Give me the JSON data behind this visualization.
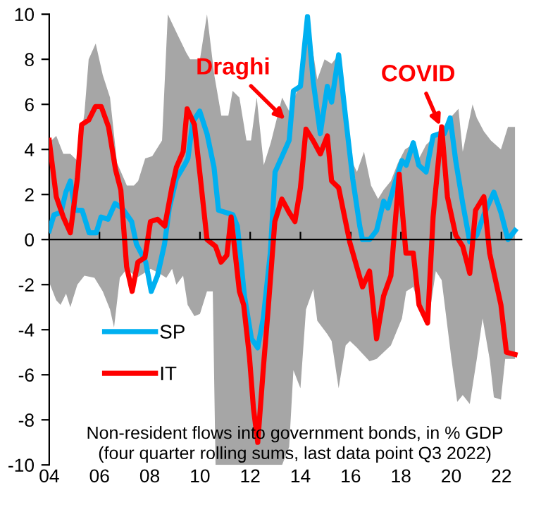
{
  "chart_data": {
    "type": "line",
    "xlim": [
      2004,
      2022.8
    ],
    "ylim": [
      -10,
      10
    ],
    "xticks": [
      {
        "value": 2004,
        "label": "04"
      },
      {
        "value": 2006,
        "label": "06"
      },
      {
        "value": 2008,
        "label": "08"
      },
      {
        "value": 2010,
        "label": "10"
      },
      {
        "value": 2012,
        "label": "12"
      },
      {
        "value": 2014,
        "label": "14"
      },
      {
        "value": 2016,
        "label": "16"
      },
      {
        "value": 2018,
        "label": "18"
      },
      {
        "value": 2020,
        "label": "20"
      },
      {
        "value": 2022,
        "label": "22"
      }
    ],
    "yticks": [
      -10,
      -8,
      -6,
      -4,
      -2,
      0,
      2,
      4,
      6,
      8,
      10
    ],
    "legend": "bottom left",
    "series": [
      {
        "type": "area",
        "color": "#a6a6a6",
        "x": [
          2004.0,
          2004.28,
          2004.56,
          2004.84,
          2005.12,
          2005.4,
          2005.57,
          2005.85,
          2006.13,
          2006.42,
          2006.7,
          2007.09,
          2007.37,
          2007.54,
          2007.82,
          2008.1,
          2008.49,
          2008.72,
          2009.06,
          2009.45,
          2009.61,
          2010.0,
          2010.28,
          2010.57,
          2010.85,
          2011.13,
          2011.3,
          2011.57,
          2011.85,
          2012.03,
          2012.26,
          2012.54,
          2012.82,
          2013.27,
          2013.55,
          2013.94,
          2014.28,
          2014.67,
          2014.96,
          2015.24,
          2015.52,
          2015.8,
          2016.08,
          2016.25,
          2016.53,
          2016.81,
          2017.09,
          2017.31,
          2017.6,
          2017.88,
          2018.16,
          2018.44,
          2018.72,
          2019.0,
          2019.28,
          2019.62,
          2019.96,
          2020.29,
          2020.46,
          2020.85,
          2021.02,
          2021.3,
          2021.58,
          2021.98,
          2022.26,
          2022.54
        ],
        "values": [
          4.3,
          4.6,
          3.8,
          3.8,
          3.5,
          5.6,
          8.0,
          8.7,
          7.3,
          6.3,
          3.4,
          2.4,
          2.4,
          2.6,
          3.6,
          3.7,
          4.4,
          10,
          9.2,
          8.3,
          8.0,
          8.0,
          10,
          7.3,
          5.5,
          5.5,
          6.6,
          6.3,
          4.4,
          4.4,
          6.3,
          3.3,
          4.3,
          6.3,
          5.7,
          6.8,
          9.9,
          7.1,
          8.0,
          7.8,
          8.2,
          5.4,
          3.4,
          3.0,
          3.9,
          2.4,
          1.8,
          2.2,
          2.6,
          3.4,
          4.0,
          4.2,
          3.6,
          4.2,
          4.5,
          4.9,
          5.4,
          5.8,
          3.9,
          6.0,
          5.4,
          4.8,
          4.4,
          4.0,
          5.0,
          5.0
        ]
      },
      {
        "type": "area",
        "color": "#a6a6a6",
        "x": [
          2004.0,
          2004.28,
          2004.45,
          2004.67,
          2004.84,
          2005.12,
          2005.4,
          2005.8,
          2006.13,
          2006.42,
          2006.58,
          2006.81,
          2007.09,
          2007.48,
          2007.76,
          2008.04,
          2008.38,
          2008.66,
          2008.89,
          2009.06,
          2009.33,
          2009.51,
          2009.78,
          2010.0,
          2010.28,
          2010.51,
          2010.62,
          2013.27,
          2013.55,
          2013.72,
          2014.0,
          2014.22,
          2014.51,
          2014.67,
          2015.07,
          2015.24,
          2015.52,
          2015.8,
          2015.97,
          2016.25,
          2016.75,
          2017.03,
          2017.6,
          2018.04,
          2018.21,
          2018.49,
          2018.88,
          2019.16,
          2019.39,
          2019.62,
          2020.01,
          2020.24,
          2020.46,
          2020.74,
          2021.02,
          2021.25,
          2021.53,
          2021.7,
          2021.98,
          2022.15,
          2022.54
        ],
        "values": [
          -1.9,
          -2.7,
          -2.9,
          -2.4,
          -3.0,
          -2.0,
          -1.6,
          -1.7,
          -2.3,
          -3.1,
          -3.9,
          -1.7,
          -1.3,
          -1.7,
          -1.5,
          -1.3,
          -1.5,
          -1.7,
          -1.3,
          -2.0,
          -1.6,
          -2.9,
          -3.4,
          -3.3,
          -2.3,
          -2.3,
          -10,
          -10,
          -9.2,
          -5.8,
          -6.6,
          -3.1,
          -2.2,
          -3.6,
          -4.2,
          -4.5,
          -6.6,
          -4.7,
          -4.5,
          -4.8,
          -5.4,
          -5.3,
          -4.7,
          -3.5,
          -2.3,
          -2.1,
          -3.5,
          -3.1,
          -1.4,
          -1.8,
          -5.3,
          -7.2,
          -6.9,
          -7.3,
          -5.3,
          -3.5,
          -5.3,
          -7.0,
          -7.1,
          -5.3,
          -5.3
        ]
      },
      {
        "name": "SP",
        "color": "#00b0f0",
        "x": [
          2004.0,
          2004.19,
          2004.47,
          2004.66,
          2004.84,
          2005.03,
          2005.31,
          2005.59,
          2005.87,
          2006.06,
          2006.34,
          2006.62,
          2006.9,
          2007.28,
          2007.47,
          2007.84,
          2008.06,
          2008.31,
          2008.59,
          2008.78,
          2009.06,
          2009.43,
          2009.52,
          2009.71,
          2009.99,
          2010.28,
          2010.56,
          2010.74,
          2011.03,
          2011.31,
          2011.49,
          2011.77,
          2012.05,
          2012.3,
          2012.52,
          2012.8,
          2012.99,
          2013.55,
          2013.72,
          2014.0,
          2014.28,
          2014.51,
          2014.79,
          2015.07,
          2015.24,
          2015.52,
          2015.8,
          2016.08,
          2016.36,
          2016.47,
          2016.75,
          2017.03,
          2017.31,
          2017.48,
          2017.76,
          2018.04,
          2018.21,
          2018.49,
          2018.71,
          2019.0,
          2019.28,
          2019.56,
          2019.73,
          2019.96,
          2020.18,
          2020.46,
          2020.74,
          2021.02,
          2021.3,
          2021.7,
          2021.98,
          2022.26,
          2022.54
        ],
        "values": [
          0.4,
          1.1,
          1.2,
          2.1,
          2.6,
          1.3,
          1.3,
          0.3,
          0.3,
          1.0,
          0.9,
          1.6,
          1.4,
          0.8,
          -0.2,
          -1.0,
          -2.3,
          -1.6,
          -0.2,
          1.4,
          2.7,
          3.4,
          3.6,
          5.2,
          5.7,
          4.7,
          3.2,
          1.3,
          1.2,
          1.1,
          0.6,
          -2.5,
          -4.4,
          -4.8,
          -3.5,
          -0.6,
          3.0,
          4.4,
          6.6,
          6.8,
          9.9,
          7.0,
          4.7,
          6.8,
          6.1,
          8.2,
          5.4,
          2.7,
          0.6,
          0,
          0,
          0.4,
          1.7,
          1.4,
          2.5,
          3.5,
          3.3,
          4.3,
          3.3,
          3.0,
          4.6,
          4.7,
          4.7,
          5.4,
          3.5,
          1.6,
          -0.1,
          0.2,
          1.1,
          2.1,
          1.2,
          0,
          0.4
        ]
      },
      {
        "name": "IT",
        "color": "#ff0000",
        "x": [
          2004.0,
          2004.28,
          2004.56,
          2004.84,
          2005.12,
          2005.29,
          2005.57,
          2005.84,
          2006.07,
          2006.36,
          2006.64,
          2006.85,
          2007.08,
          2007.3,
          2007.53,
          2007.81,
          2008.03,
          2008.31,
          2008.6,
          2008.88,
          2009.06,
          2009.33,
          2009.49,
          2009.78,
          2010.0,
          2010.28,
          2010.62,
          2010.84,
          2011.07,
          2011.24,
          2011.57,
          2011.74,
          2011.97,
          2012.13,
          2012.3,
          2012.53,
          2012.7,
          2012.98,
          2013.26,
          2013.55,
          2013.78,
          2014.0,
          2014.22,
          2014.5,
          2014.79,
          2015.07,
          2015.24,
          2015.52,
          2015.96,
          2016.47,
          2016.75,
          2017.03,
          2017.31,
          2017.6,
          2017.93,
          2018.2,
          2018.49,
          2018.72,
          2019.06,
          2019.28,
          2019.62,
          2019.85,
          2020.18,
          2020.46,
          2020.74,
          2020.97,
          2021.3,
          2021.53,
          2021.98,
          2022.2,
          2022.54
        ],
        "values": [
          4.4,
          1.9,
          1.0,
          0.3,
          2.7,
          5.1,
          5.3,
          5.9,
          5.9,
          5.0,
          3.1,
          2.2,
          -1.2,
          -2.3,
          -1.0,
          -0.8,
          0.8,
          0.9,
          0.6,
          2.3,
          3.2,
          3.9,
          5.8,
          5.1,
          2.9,
          0,
          -0.3,
          -1.0,
          -0.7,
          1.0,
          -2.3,
          -2.9,
          -5.2,
          -7.5,
          -9.0,
          -5.6,
          -3.3,
          0.8,
          1.8,
          1.2,
          0.8,
          2.3,
          4.9,
          4.4,
          3.8,
          4.6,
          2.6,
          2.3,
          -0.1,
          -2.1,
          -1.4,
          -4.4,
          -2.5,
          -1.6,
          2.9,
          -0.6,
          -0.6,
          -2.9,
          -3.7,
          1.0,
          5.0,
          1.9,
          0.2,
          -0.3,
          -1.5,
          1.3,
          1.9,
          -0.6,
          -2.9,
          -5.0,
          -5.1
        ]
      }
    ],
    "annotations": [
      {
        "text": "Draghi",
        "x": 2013.5,
        "y": 5.2
      },
      {
        "text": "COVID",
        "x": 2019.62,
        "y": 4.9
      },
      "Non-resident flows into government bonds, in % GDP\n(four quarter rolling sums, last data point Q3 2022)"
    ]
  }
}
